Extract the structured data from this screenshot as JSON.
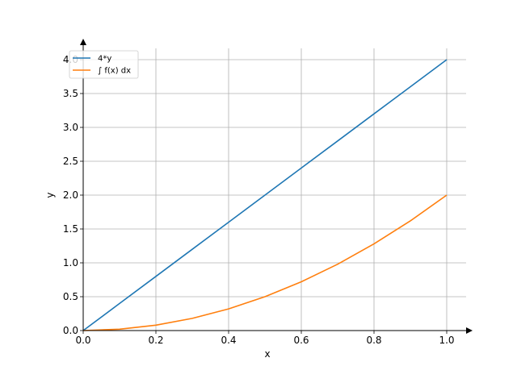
{
  "chart_data": {
    "type": "line",
    "xlabel": "x",
    "ylabel": "y",
    "xlim": [
      0,
      1.05
    ],
    "ylim": [
      0,
      4.2
    ],
    "xticks": [
      "0.0",
      "0.2",
      "0.4",
      "0.6",
      "0.8",
      "1.0"
    ],
    "yticks": [
      "0.0",
      "0.5",
      "1.0",
      "1.5",
      "2.0",
      "2.5",
      "3.0",
      "3.5",
      "4.0"
    ],
    "grid": true,
    "legend_position": "top-left",
    "series": [
      {
        "name": "4*y",
        "color": "#1f77b4",
        "x": [
          0.0,
          0.1,
          0.2,
          0.3,
          0.4,
          0.5,
          0.6,
          0.7,
          0.8,
          0.9,
          1.0
        ],
        "y": [
          0.0,
          0.4,
          0.8,
          1.2,
          1.6,
          2.0,
          2.4,
          2.8,
          3.2,
          3.6,
          4.0
        ]
      },
      {
        "name": "∫ f(x) dx",
        "color": "#ff7f0e",
        "x": [
          0.0,
          0.1,
          0.2,
          0.3,
          0.4,
          0.5,
          0.6,
          0.7,
          0.8,
          0.9,
          1.0
        ],
        "y": [
          0.0,
          0.02,
          0.08,
          0.18,
          0.32,
          0.5,
          0.72,
          0.98,
          1.28,
          1.62,
          2.0
        ]
      }
    ]
  }
}
